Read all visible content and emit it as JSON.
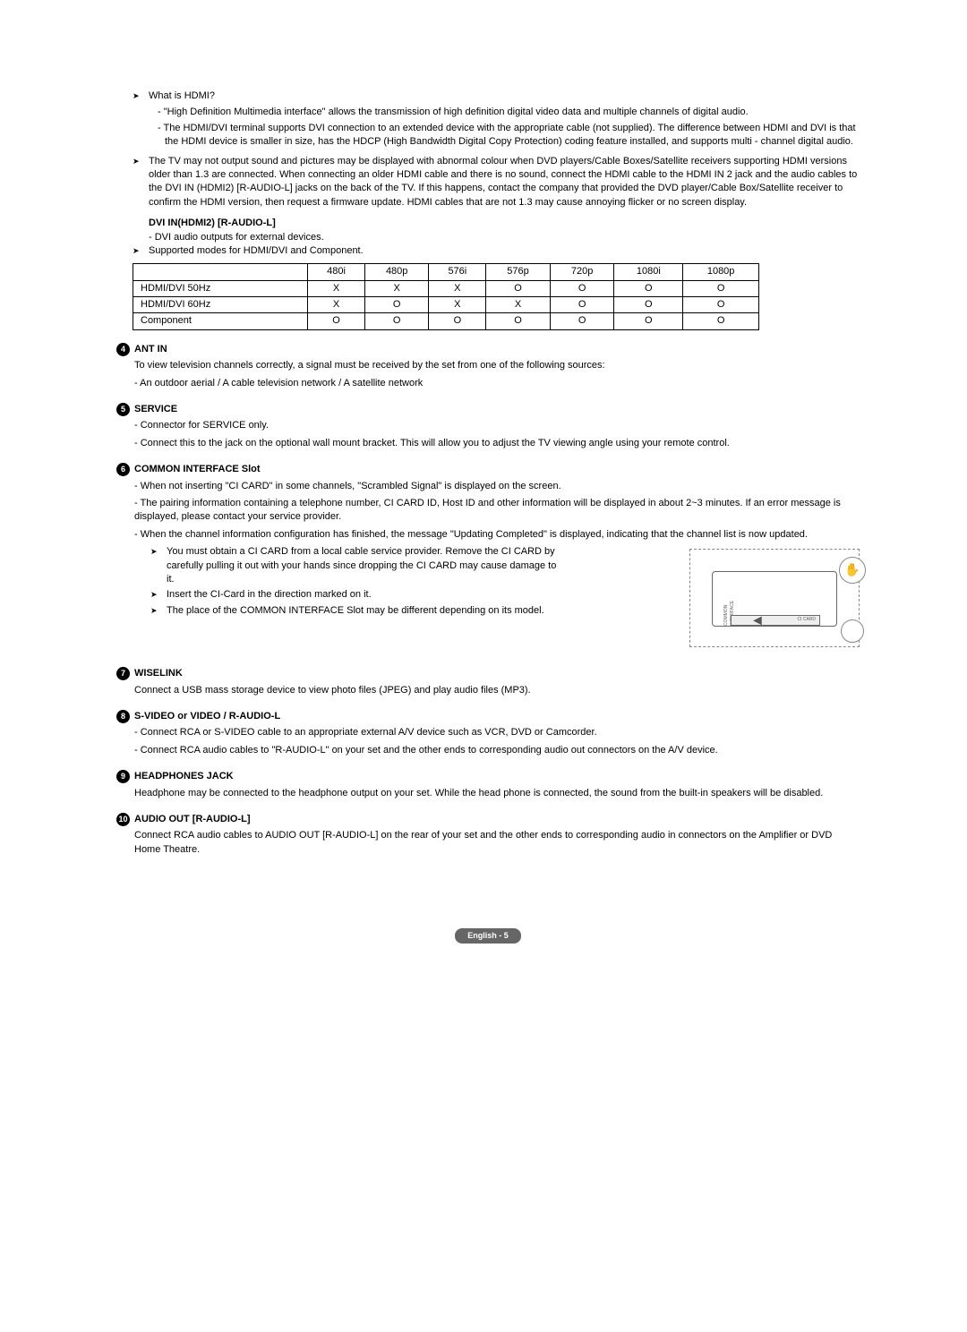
{
  "hdmi_q": "What is HDMI?",
  "hdmi_a1": "- \"High Definition Multimedia interface\" allows the transmission of high definition digital video data and multiple channels of digital audio.",
  "hdmi_a2": "- The HDMI/DVI terminal supports DVI connection to an extended device with the appropriate cable (not supplied). The difference between HDMI and DVI is that the HDMI device is smaller in size, has the HDCP (High Bandwidth Digital Copy Protection) coding feature installed, and supports multi - channel digital audio.",
  "hdmi_note": "The TV may not output sound and pictures may be displayed with abnormal colour when DVD players/Cable Boxes/Satellite receivers supporting HDMI versions older than 1.3 are connected. When connecting an older HDMI cable and there is no sound, connect the HDMI cable to the HDMI IN 2 jack and the audio cables to the DVI IN (HDMI2) [R-AUDIO-L] jacks on the back of the TV. If this happens, contact the company that provided the DVD player/Cable Box/Satellite receiver to confirm the HDMI version, then request a firmware update. HDMI cables that are not 1.3 may cause annoying flicker or no screen display.",
  "dvi_title": "DVI IN(HDMI2) [R-AUDIO-L]",
  "dvi_desc": "- DVI audio outputs for external devices.",
  "dvi_modes": "Supported modes for HDMI/DVI and Component.",
  "table": {
    "headers": [
      "",
      "480i",
      "480p",
      "576i",
      "576p",
      "720p",
      "1080i",
      "1080p"
    ],
    "rows": [
      [
        "HDMI/DVI 50Hz",
        "X",
        "X",
        "X",
        "O",
        "O",
        "O",
        "O"
      ],
      [
        "HDMI/DVI 60Hz",
        "X",
        "O",
        "X",
        "X",
        "O",
        "O",
        "O"
      ],
      [
        "Component",
        "O",
        "O",
        "O",
        "O",
        "O",
        "O",
        "O"
      ]
    ]
  },
  "sections": [
    {
      "num": "4",
      "title": "ANT IN",
      "body": [
        "To view television channels correctly, a signal must be received by the set from one of the following sources:",
        "- An outdoor aerial / A cable television network / A satellite network"
      ]
    },
    {
      "num": "5",
      "title": "SERVICE",
      "body": [
        "- Connector for SERVICE only.",
        "- Connect this to the jack on the optional wall mount bracket. This will allow you to adjust the TV viewing angle using your remote control."
      ]
    },
    {
      "num": "6",
      "title": "COMMON INTERFACE Slot",
      "body": [
        "- When not inserting \"CI CARD\" in some channels, \"Scrambled Signal\" is displayed on the screen.",
        "- The pairing information containing a telephone number, CI CARD ID, Host ID and other information will be displayed in about 2~3 minutes. If an error message is displayed, please contact your service provider.",
        "- When the channel information configuration has finished, the message \"Updating Completed\" is displayed, indicating that the channel list is now updated."
      ],
      "arrows": [
        "You must obtain a CI CARD from a local cable service provider. Remove the CI CARD by carefully pulling it out with your hands since dropping the CI CARD may cause damage to it.",
        "Insert the CI-Card in the direction marked on it.",
        "The place of the COMMON INTERFACE Slot may be different depending on its model."
      ]
    },
    {
      "num": "7",
      "title": "WISELINK",
      "body": [
        "Connect a USB mass storage device to view photo files (JPEG) and play audio files (MP3)."
      ]
    },
    {
      "num": "8",
      "title": "S-VIDEO or VIDEO / R-AUDIO-L",
      "body": [
        "- Connect RCA or S-VIDEO cable to an appropriate external A/V device such as VCR, DVD or Camcorder.",
        "- Connect RCA audio cables to \"R-AUDIO-L\" on your set and the other ends to corresponding audio out connectors on the A/V device."
      ]
    },
    {
      "num": "9",
      "title": "HEADPHONES JACK",
      "body": [
        "Headphone may be connected to the headphone output on your set. While the head phone is connected, the sound from the built-in speakers will be disabled."
      ]
    },
    {
      "num": "10",
      "title": "AUDIO OUT [R-AUDIO-L]",
      "body": [
        "Connect RCA audio cables to AUDIO OUT [R-AUDIO-L] on the rear of your set and the other ends to corresponding audio in connectors on the Amplifier or DVD Home Theatre."
      ]
    }
  ],
  "diagram_label": "COMMON INTERFACE",
  "diagram_card": "CI CARD",
  "footer": "English - 5"
}
